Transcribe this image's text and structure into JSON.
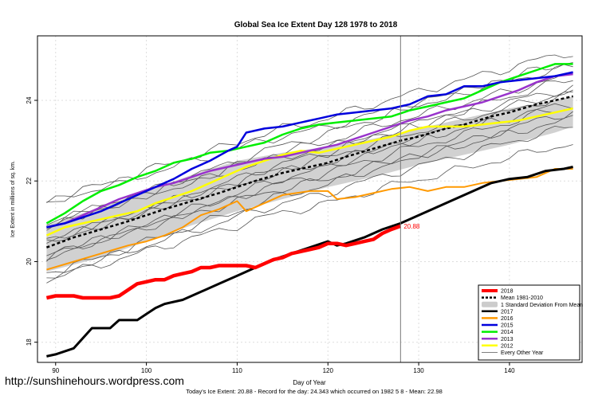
{
  "chart_data": {
    "type": "line",
    "title": "Global Sea Ice Extent Day 128 1978 to 2018",
    "xlabel": "Day of Year",
    "ylabel": "Ice Extent in millions of sq. km.",
    "xlim": [
      88,
      148
    ],
    "ylim": [
      17.5,
      25.6
    ],
    "x_ticks": [
      90,
      100,
      110,
      120,
      130,
      140
    ],
    "y_ticks": [
      18,
      20,
      22,
      24
    ],
    "grid": true,
    "current_day": 128,
    "today_label": "20.88",
    "legend_position": "bottom-right",
    "legend": [
      {
        "label": "2018",
        "style": "line",
        "color": "#ff0000"
      },
      {
        "label": "Mean 1981-2010",
        "style": "dashed",
        "color": "#000000"
      },
      {
        "label": "1 Standard Deviation From Mean",
        "style": "band",
        "color": "#cccccc"
      },
      {
        "label": "2017",
        "style": "line",
        "color": "#000000"
      },
      {
        "label": "2016",
        "style": "line",
        "color": "#ff9900"
      },
      {
        "label": "2015",
        "style": "line",
        "color": "#0000dd"
      },
      {
        "label": "2014",
        "style": "line",
        "color": "#00ee00"
      },
      {
        "label": "2013",
        "style": "line",
        "color": "#9933cc"
      },
      {
        "label": "2012",
        "style": "line",
        "color": "#ffff00"
      },
      {
        "label": "Every Other Year",
        "style": "thin",
        "color": "#555555"
      }
    ],
    "std_band": {
      "x": [
        89,
        95,
        100,
        105,
        110,
        115,
        120,
        125,
        130,
        135,
        140,
        145,
        147
      ],
      "upper": [
        20.9,
        21.35,
        21.75,
        22.15,
        22.5,
        22.7,
        22.85,
        23.05,
        23.3,
        23.55,
        23.8,
        24.0,
        24.1
      ],
      "lower": [
        19.75,
        20.1,
        20.5,
        20.9,
        21.25,
        21.55,
        21.85,
        22.1,
        22.4,
        22.65,
        22.9,
        23.2,
        23.35
      ]
    },
    "series": [
      {
        "name": "Mean 1981-2010",
        "color": "#000000",
        "width": 2.5,
        "dash": "4,3",
        "x": [
          89,
          92,
          95,
          98,
          100,
          102,
          105,
          108,
          110,
          112,
          115,
          118,
          120,
          122,
          125,
          128,
          130,
          133,
          135,
          138,
          140,
          143,
          145,
          147
        ],
        "y": [
          20.35,
          20.6,
          20.8,
          21.0,
          21.15,
          21.3,
          21.5,
          21.7,
          21.85,
          22.0,
          22.2,
          22.35,
          22.45,
          22.6,
          22.8,
          23.0,
          23.1,
          23.3,
          23.4,
          23.6,
          23.7,
          23.9,
          24.0,
          24.1
        ]
      },
      {
        "name": "2017",
        "color": "#000000",
        "width": 3,
        "x": [
          89,
          90,
          92,
          93,
          94,
          95,
          96,
          97,
          99,
          100,
          101,
          102,
          104,
          106,
          108,
          110,
          112,
          114,
          116,
          118,
          120,
          121,
          122,
          124,
          126,
          128,
          130,
          132,
          134,
          136,
          138,
          140,
          142,
          144,
          146,
          147
        ],
        "y": [
          17.65,
          17.7,
          17.85,
          18.1,
          18.35,
          18.35,
          18.35,
          18.55,
          18.55,
          18.7,
          18.85,
          18.95,
          19.05,
          19.25,
          19.45,
          19.65,
          19.85,
          20.05,
          20.2,
          20.35,
          20.5,
          20.4,
          20.45,
          20.6,
          20.8,
          20.95,
          21.15,
          21.35,
          21.55,
          21.75,
          21.95,
          22.05,
          22.1,
          22.25,
          22.3,
          22.35
        ]
      },
      {
        "name": "2016",
        "color": "#ff9900",
        "width": 2,
        "x": [
          89,
          92,
          95,
          98,
          100,
          102,
          104,
          106,
          108,
          110,
          111,
          113,
          115,
          118,
          120,
          121,
          123,
          125,
          127,
          129,
          131,
          133,
          135,
          137,
          139,
          141,
          143,
          145,
          147
        ],
        "y": [
          19.8,
          20.0,
          20.2,
          20.4,
          20.5,
          20.65,
          20.85,
          21.15,
          21.3,
          21.5,
          21.25,
          21.45,
          21.65,
          21.75,
          21.75,
          21.55,
          21.6,
          21.7,
          21.8,
          21.85,
          21.75,
          21.85,
          21.85,
          21.95,
          22.0,
          22.05,
          22.1,
          22.3,
          22.3
        ]
      },
      {
        "name": "2015",
        "color": "#0000dd",
        "width": 2.5,
        "x": [
          89,
          91,
          93,
          95,
          97,
          99,
          101,
          103,
          105,
          107,
          109,
          110,
          111,
          113,
          115,
          117,
          119,
          121,
          123,
          125,
          127,
          129,
          131,
          133,
          135,
          137,
          139,
          141,
          143,
          145,
          147
        ],
        "y": [
          20.85,
          20.95,
          21.1,
          21.25,
          21.45,
          21.65,
          21.85,
          22.05,
          22.3,
          22.5,
          22.75,
          22.85,
          23.2,
          23.3,
          23.35,
          23.45,
          23.55,
          23.65,
          23.7,
          23.75,
          23.8,
          23.9,
          24.1,
          24.15,
          24.35,
          24.35,
          24.45,
          24.5,
          24.55,
          24.6,
          24.7
        ]
      },
      {
        "name": "2014",
        "color": "#00ee00",
        "width": 2.5,
        "x": [
          89,
          91,
          93,
          95,
          97,
          99,
          101,
          103,
          105,
          107,
          109,
          111,
          113,
          115,
          117,
          119,
          121,
          123,
          125,
          127,
          129,
          131,
          133,
          135,
          137,
          139,
          141,
          143,
          145,
          147
        ],
        "y": [
          20.95,
          21.2,
          21.5,
          21.75,
          21.9,
          22.1,
          22.25,
          22.45,
          22.55,
          22.7,
          22.75,
          22.85,
          22.95,
          23.15,
          23.3,
          23.4,
          23.45,
          23.5,
          23.55,
          23.6,
          23.75,
          23.85,
          23.95,
          24.05,
          24.25,
          24.45,
          24.6,
          24.75,
          24.9,
          24.9
        ]
      },
      {
        "name": "2013",
        "color": "#9933cc",
        "width": 2.5,
        "x": [
          89,
          91,
          93,
          95,
          97,
          99,
          101,
          103,
          105,
          107,
          109,
          111,
          113,
          115,
          117,
          119,
          121,
          123,
          125,
          127,
          129,
          131,
          133,
          135,
          137,
          139,
          141,
          143,
          145,
          147
        ],
        "y": [
          20.85,
          20.95,
          21.15,
          21.35,
          21.55,
          21.7,
          21.85,
          21.95,
          22.1,
          22.25,
          22.35,
          22.45,
          22.55,
          22.6,
          22.7,
          22.8,
          22.9,
          23.05,
          23.2,
          23.35,
          23.5,
          23.6,
          23.75,
          23.85,
          23.95,
          24.1,
          24.25,
          24.45,
          24.6,
          24.65
        ]
      },
      {
        "name": "2012",
        "color": "#ffff00",
        "width": 2.5,
        "x": [
          89,
          91,
          93,
          95,
          97,
          99,
          101,
          103,
          105,
          107,
          109,
          111,
          113,
          115,
          117,
          119,
          121,
          123,
          125,
          127,
          129,
          131,
          133,
          135,
          137,
          139,
          141,
          143,
          145,
          147
        ],
        "y": [
          20.65,
          20.85,
          20.95,
          21.05,
          21.15,
          21.25,
          21.45,
          21.6,
          21.75,
          21.95,
          22.15,
          22.35,
          22.5,
          22.65,
          22.75,
          22.7,
          22.8,
          22.9,
          23.0,
          23.1,
          23.25,
          23.35,
          23.35,
          23.35,
          23.4,
          23.45,
          23.5,
          23.6,
          23.7,
          23.8
        ]
      },
      {
        "name": "2018",
        "color": "#ff0000",
        "width": 4.5,
        "x": [
          89,
          90,
          91,
          92,
          93,
          94,
          95,
          96,
          97,
          98,
          99,
          100,
          101,
          102,
          103,
          104,
          105,
          106,
          107,
          108,
          109,
          110,
          111,
          112,
          113,
          114,
          115,
          116,
          117,
          118,
          119,
          120,
          121,
          122,
          123,
          124,
          125,
          126,
          127,
          128
        ],
        "y": [
          19.1,
          19.15,
          19.15,
          19.15,
          19.1,
          19.1,
          19.1,
          19.1,
          19.15,
          19.3,
          19.45,
          19.5,
          19.55,
          19.55,
          19.65,
          19.7,
          19.75,
          19.85,
          19.85,
          19.9,
          19.9,
          19.9,
          19.9,
          19.85,
          19.95,
          20.05,
          20.1,
          20.2,
          20.25,
          20.3,
          20.35,
          20.45,
          20.45,
          20.4,
          20.45,
          20.5,
          20.55,
          20.7,
          20.8,
          20.88
        ]
      }
    ]
  },
  "footer": {
    "url": "http://sunshinehours.wordpress.com",
    "summary": "Today's Ice Extent: 20.88  -  Record for the day: 24.343 which occurred on 1982 5 8  -  Mean: 22.98"
  }
}
